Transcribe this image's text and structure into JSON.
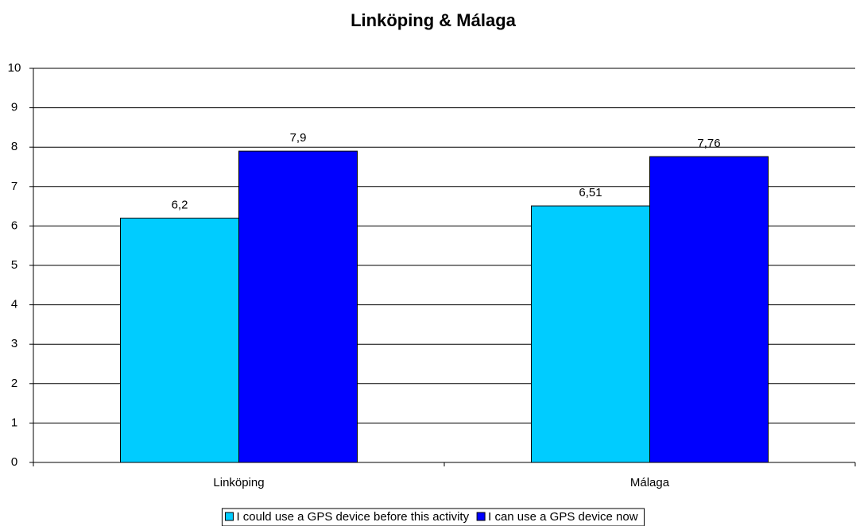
{
  "chart_data": {
    "type": "bar",
    "title": "Linköping & Málaga",
    "categories": [
      "Linköping",
      "Málaga"
    ],
    "series": [
      {
        "name": "I could use a GPS device before this activity",
        "color": "#00ccff",
        "values": [
          6.2,
          6.51
        ],
        "value_labels": [
          "6,2",
          "6,51"
        ]
      },
      {
        "name": "I can use a GPS device now",
        "color": "#0000ff",
        "values": [
          7.9,
          7.76
        ],
        "value_labels": [
          "7,9",
          "7,76"
        ]
      }
    ],
    "ylim": [
      0,
      10
    ],
    "yticks": [
      0,
      1,
      2,
      3,
      4,
      5,
      6,
      7,
      8,
      9,
      10
    ],
    "grid": true,
    "legend": "bottom"
  }
}
